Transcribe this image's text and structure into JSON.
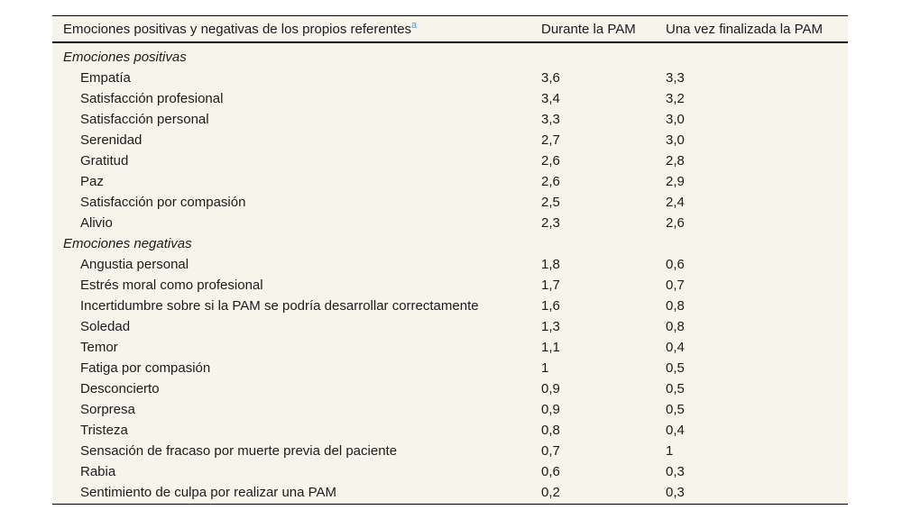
{
  "page": {
    "background_color": "#ffffff"
  },
  "table": {
    "background_color": "#f7f4ec",
    "rule_color": "#000000",
    "footnote_marker_color": "#36a1d5",
    "header": {
      "col_emotions": "Emociones positivas y negativas de los propios referentes",
      "footnote_marker": "a",
      "col_during": "Durante la PAM",
      "col_after": "Una vez finalizada la PAM"
    },
    "rows": [
      {
        "type": "section",
        "label": "Emociones positivas",
        "during": "",
        "after": ""
      },
      {
        "type": "item",
        "label": "Empatía",
        "during": "3,6",
        "after": "3,3"
      },
      {
        "type": "item",
        "label": "Satisfacción profesional",
        "during": "3,4",
        "after": "3,2"
      },
      {
        "type": "item",
        "label": "Satisfacción personal",
        "during": "3,3",
        "after": "3,0"
      },
      {
        "type": "item",
        "label": "Serenidad",
        "during": "2,7",
        "after": "3,0"
      },
      {
        "type": "item",
        "label": "Gratitud",
        "during": "2,6",
        "after": "2,8"
      },
      {
        "type": "item",
        "label": "Paz",
        "during": "2,6",
        "after": "2,9"
      },
      {
        "type": "item",
        "label": "Satisfacción por compasión",
        "during": "2,5",
        "after": "2,4"
      },
      {
        "type": "item",
        "label": "Alivio",
        "during": "2,3",
        "after": "2,6"
      },
      {
        "type": "section",
        "label": "Emociones negativas",
        "during": "",
        "after": ""
      },
      {
        "type": "item",
        "label": "Angustia personal",
        "during": "1,8",
        "after": "0,6"
      },
      {
        "type": "item",
        "label": "Estrés moral como profesional",
        "during": "1,7",
        "after": "0,7"
      },
      {
        "type": "item",
        "label": "Incertidumbre sobre si la PAM se podría desarrollar correctamente",
        "during": "1,6",
        "after": "0,8"
      },
      {
        "type": "item",
        "label": "Soledad",
        "during": "1,3",
        "after": "0,8"
      },
      {
        "type": "item",
        "label": "Temor",
        "during": "1,1",
        "after": "0,4"
      },
      {
        "type": "item",
        "label": "Fatiga por compasión",
        "during": "1",
        "after": "0,5"
      },
      {
        "type": "item",
        "label": "Desconcierto",
        "during": "0,9",
        "after": "0,5"
      },
      {
        "type": "item",
        "label": "Sorpresa",
        "during": "0,9",
        "after": "0,5"
      },
      {
        "type": "item",
        "label": "Tristeza",
        "during": "0,8",
        "after": "0,4"
      },
      {
        "type": "item",
        "label": "Sensación de fracaso por muerte previa del paciente",
        "during": "0,7",
        "after": "1"
      },
      {
        "type": "item",
        "label": "Rabia",
        "during": "0,6",
        "after": "0,3"
      },
      {
        "type": "item",
        "label": "Sentimiento de culpa por realizar una PAM",
        "during": "0,2",
        "after": "0,3"
      }
    ]
  },
  "chart_data": {
    "type": "table",
    "title": "Emociones positivas y negativas de los propios referentes",
    "columns": [
      "Emoción",
      "Durante la PAM",
      "Una vez finalizada la PAM"
    ],
    "series": [
      {
        "name": "Durante la PAM",
        "values": [
          3.6,
          3.4,
          3.3,
          2.7,
          2.6,
          2.6,
          2.5,
          2.3,
          1.8,
          1.7,
          1.6,
          1.3,
          1.1,
          1,
          0.9,
          0.9,
          0.8,
          0.7,
          0.6,
          0.2
        ]
      },
      {
        "name": "Una vez finalizada la PAM",
        "values": [
          3.3,
          3.2,
          3.0,
          3.0,
          2.8,
          2.9,
          2.4,
          2.6,
          0.6,
          0.7,
          0.8,
          0.8,
          0.4,
          0.5,
          0.5,
          0.5,
          0.4,
          1,
          0.3,
          0.3
        ]
      }
    ],
    "categories": [
      "Empatía",
      "Satisfacción profesional",
      "Satisfacción personal",
      "Serenidad",
      "Gratitud",
      "Paz",
      "Satisfacción por compasión",
      "Alivio",
      "Angustia personal",
      "Estrés moral como profesional",
      "Incertidumbre sobre si la PAM se podría desarrollar correctamente",
      "Soledad",
      "Temor",
      "Fatiga por compasión",
      "Desconcierto",
      "Sorpresa",
      "Tristeza",
      "Sensación de fracaso por muerte previa del paciente",
      "Rabia",
      "Sentimiento de culpa por realizar una PAM"
    ],
    "groups": [
      "Emociones positivas",
      "Emociones negativas"
    ]
  }
}
